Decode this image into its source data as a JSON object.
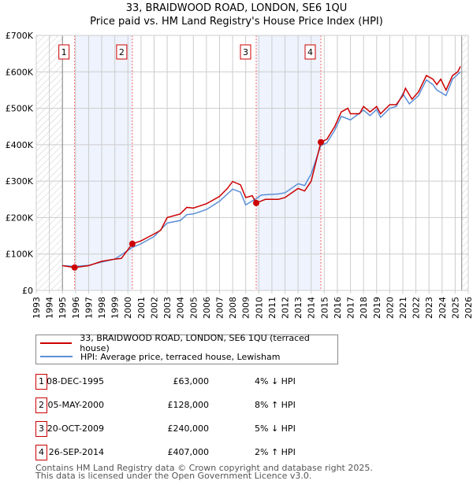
{
  "chart_data": {
    "type": "line",
    "title": "33, BRAIDWOOD ROAD, LONDON, SE6 1QU",
    "subtitle": "Price paid vs. HM Land Registry's House Price Index (HPI)",
    "xlim": [
      1993,
      2026
    ],
    "ylim": [
      0,
      700000
    ],
    "y_ticks": [
      {
        "v": 0,
        "label": "£0"
      },
      {
        "v": 100000,
        "label": "£100K"
      },
      {
        "v": 200000,
        "label": "£200K"
      },
      {
        "v": 300000,
        "label": "£300K"
      },
      {
        "v": 400000,
        "label": "£400K"
      },
      {
        "v": 500000,
        "label": "£500K"
      },
      {
        "v": 600000,
        "label": "£600K"
      },
      {
        "v": 700000,
        "label": "£700K"
      }
    ],
    "x_ticks": [
      "1993",
      "1994",
      "1995",
      "1996",
      "1997",
      "1998",
      "1999",
      "2000",
      "2001",
      "2002",
      "2003",
      "2004",
      "2005",
      "2006",
      "2007",
      "2008",
      "2009",
      "2010",
      "2011",
      "2012",
      "2013",
      "2014",
      "2015",
      "2016",
      "2017",
      "2018",
      "2019",
      "2020",
      "2021",
      "2022",
      "2023",
      "2024",
      "2025",
      "2026"
    ],
    "grid": true,
    "hatched_before": 1995,
    "hatched_after": 2025.5,
    "series": [
      {
        "name": "33, BRAIDWOOD ROAD, LONDON, SE6 1QU (terraced house)",
        "color": "#cc0000",
        "x": [
          1995,
          1995.93,
          1997,
          1998,
          1999,
          1999.5,
          2000.34,
          2001,
          2002,
          2002.5,
          2003,
          2004,
          2004.5,
          2005,
          2006,
          2007,
          2007.6,
          2008,
          2008.6,
          2009,
          2009.5,
          2009.8,
          2010.5,
          2011.5,
          2012,
          2013,
          2013.5,
          2014,
          2014.74,
          2015.2,
          2015.8,
          2016.3,
          2016.8,
          2017,
          2017.7,
          2018,
          2018.5,
          2019,
          2019.3,
          2020,
          2020.5,
          2021,
          2021.2,
          2021.7,
          2022.2,
          2022.8,
          2023.3,
          2023.6,
          2023.9,
          2024.3,
          2024.8,
          2025.2,
          2025.4
        ],
        "y": [
          68000,
          63000,
          68000,
          80000,
          86000,
          88000,
          128000,
          136000,
          155000,
          165000,
          200000,
          210000,
          228000,
          226000,
          238000,
          258000,
          280000,
          299000,
          290000,
          255000,
          260000,
          240000,
          250000,
          250000,
          255000,
          280000,
          273000,
          300000,
          407000,
          415000,
          450000,
          490000,
          500000,
          485000,
          485000,
          505000,
          490000,
          505000,
          485000,
          510000,
          510000,
          535000,
          555000,
          525000,
          545000,
          590000,
          580000,
          565000,
          580000,
          550000,
          590000,
          600000,
          615000
        ]
      },
      {
        "name": "HPI: Average price, terraced house, Lewisham",
        "color": "#5b8fd6",
        "x": [
          1995,
          1996,
          1997,
          1998,
          1999,
          2000.34,
          2001,
          2002,
          2003,
          2004,
          2004.5,
          2005,
          2006,
          2007,
          2008,
          2008.6,
          2009,
          2009.8,
          2010.2,
          2011.5,
          2012,
          2013,
          2013.5,
          2014,
          2014.74,
          2015.2,
          2015.8,
          2016.3,
          2017,
          2018,
          2018.5,
          2019,
          2019.3,
          2020,
          2020.5,
          2021,
          2021.5,
          2022.2,
          2022.8,
          2023.3,
          2023.6,
          2024.3,
          2024.8,
          2025.4
        ],
        "y": [
          68000,
          66000,
          69000,
          78000,
          86000,
          118000,
          128000,
          148000,
          185000,
          192000,
          208000,
          210000,
          222000,
          245000,
          278000,
          270000,
          235000,
          252000,
          262000,
          265000,
          268000,
          293000,
          288000,
          320000,
          398000,
          405000,
          440000,
          478000,
          468000,
          495000,
          480000,
          497000,
          475000,
          500000,
          505000,
          540000,
          512000,
          535000,
          578000,
          565000,
          550000,
          535000,
          580000,
          600000
        ]
      }
    ],
    "sales": [
      {
        "label": "1",
        "date": "08-DEC-1995",
        "price": "£63,000",
        "hpi": "4% ↓ HPI",
        "x": 1995.93,
        "y": 63000
      },
      {
        "label": "2",
        "date": "05-MAY-2000",
        "price": "£128,000",
        "hpi": "8% ↑ HPI",
        "x": 2000.34,
        "y": 128000
      },
      {
        "label": "3",
        "date": "20-OCT-2009",
        "price": "£240,000",
        "hpi": "5% ↓ HPI",
        "x": 2009.8,
        "y": 240000
      },
      {
        "label": "4",
        "date": "26-SEP-2014",
        "price": "£407,000",
        "hpi": "2% ↑ HPI",
        "x": 2014.74,
        "y": 407000
      }
    ],
    "shaded_ranges": [
      [
        1995.93,
        2000.34
      ],
      [
        2009.8,
        2014.74
      ]
    ]
  },
  "footer": {
    "line1": "Contains HM Land Registry data © Crown copyright and database right 2025.",
    "line2": "This data is licensed under the Open Government Licence v3.0."
  }
}
